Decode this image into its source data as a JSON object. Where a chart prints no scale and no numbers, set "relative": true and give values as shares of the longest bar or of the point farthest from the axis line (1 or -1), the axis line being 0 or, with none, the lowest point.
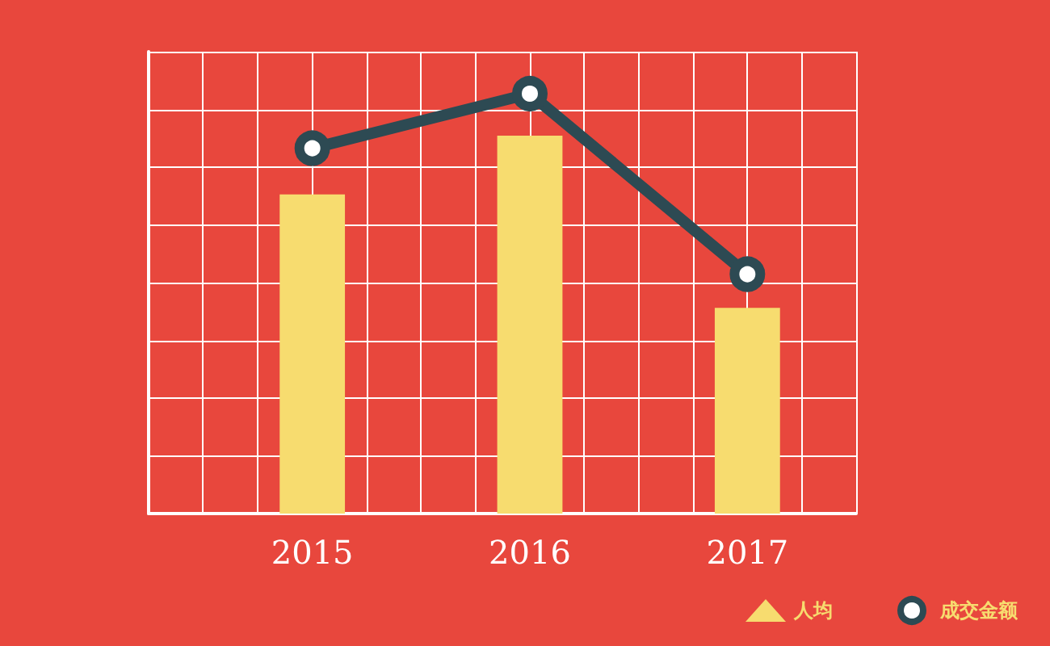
{
  "chart_data": {
    "type": "line",
    "relative": true,
    "categories": [
      "2015",
      "2016",
      "2017"
    ],
    "series": [
      {
        "name": "人均",
        "type": "bar",
        "marker": "triangle",
        "color": "#f7dc6f",
        "values": [
          0.76,
          0.9,
          0.49
        ]
      },
      {
        "name": "成交金额",
        "marker": "circle",
        "color": "#2d4a53",
        "values": [
          0.87,
          1,
          0.57
        ]
      }
    ],
    "grid": true,
    "legend": "bottom right"
  }
}
